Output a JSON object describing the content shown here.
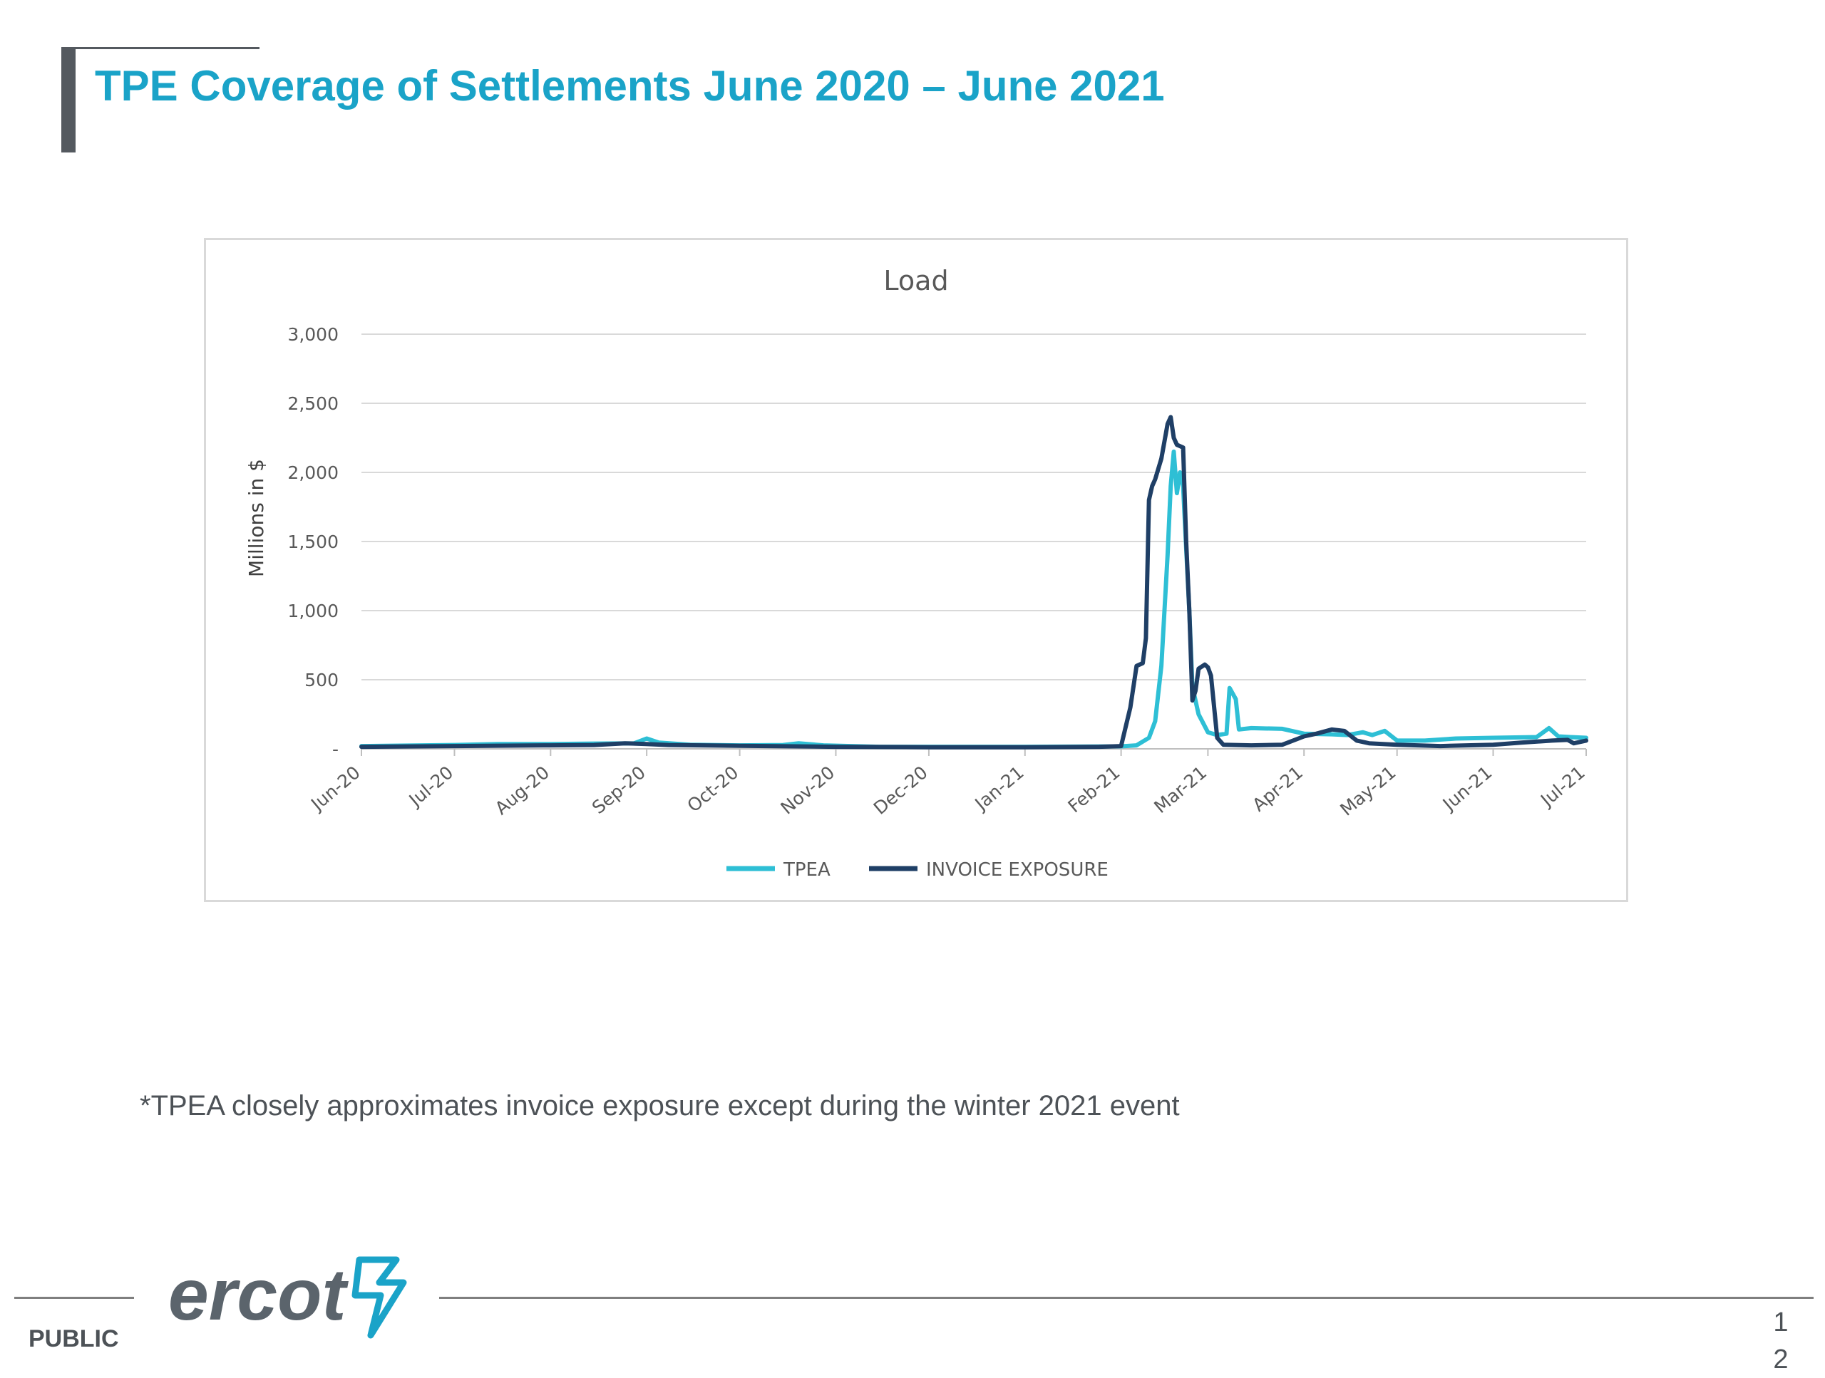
{
  "slide": {
    "title": "TPE Coverage of Settlements June 2020 – June 2021",
    "footnote": "*TPEA closely approximates invoice exposure except during the winter 2021 event",
    "classification": "PUBLIC",
    "page_number_line1": "1",
    "page_number_line2": "2",
    "logo_text": "ercot",
    "colors": {
      "title": "#1aa3c8",
      "tpea": "#2ebfd5",
      "invoice": "#1f3f66"
    }
  },
  "chart_data": {
    "type": "line",
    "title": "Load",
    "ylabel": "Millions in $",
    "xlabel": "",
    "ylim": [
      0,
      3000
    ],
    "yticks": [
      0,
      500,
      1000,
      1500,
      2000,
      2500,
      3000
    ],
    "ytick_labels": [
      "-",
      "500",
      "1,000",
      "1,500",
      "2,000",
      "2,500",
      "3,000"
    ],
    "xlim": [
      "2020-06-01",
      "2021-07-01"
    ],
    "x_ticks": [
      "2020-06-01",
      "2020-07-01",
      "2020-08-01",
      "2020-09-01",
      "2020-10-01",
      "2020-11-01",
      "2020-12-01",
      "2021-01-01",
      "2021-02-01",
      "2021-03-01",
      "2021-04-01",
      "2021-05-01",
      "2021-06-01",
      "2021-07-01"
    ],
    "xtick_labels": [
      "Jun-20",
      "Jul-20",
      "Aug-20",
      "Sep-20",
      "Oct-20",
      "Nov-20",
      "Dec-20",
      "Jan-21",
      "Feb-21",
      "Mar-21",
      "Apr-21",
      "May-21",
      "Jun-21",
      "Jul-21"
    ],
    "grid": true,
    "legend_position": "bottom",
    "series": [
      {
        "name": "TPEA",
        "color": "#2ebfd5",
        "points": [
          [
            "2020-06-01",
            20
          ],
          [
            "2020-07-01",
            28
          ],
          [
            "2020-07-15",
            35
          ],
          [
            "2020-08-01",
            35
          ],
          [
            "2020-08-15",
            38
          ],
          [
            "2020-08-28",
            40
          ],
          [
            "2020-09-01",
            75
          ],
          [
            "2020-09-05",
            45
          ],
          [
            "2020-09-15",
            30
          ],
          [
            "2020-10-01",
            25
          ],
          [
            "2020-10-15",
            28
          ],
          [
            "2020-10-20",
            40
          ],
          [
            "2020-10-28",
            25
          ],
          [
            "2020-11-15",
            15
          ],
          [
            "2020-12-01",
            15
          ],
          [
            "2021-01-01",
            15
          ],
          [
            "2021-02-01",
            18
          ],
          [
            "2021-02-06",
            25
          ],
          [
            "2021-02-10",
            80
          ],
          [
            "2021-02-12",
            200
          ],
          [
            "2021-02-14",
            600
          ],
          [
            "2021-02-16",
            1400
          ],
          [
            "2021-02-17",
            1900
          ],
          [
            "2021-02-18",
            2150
          ],
          [
            "2021-02-19",
            1850
          ],
          [
            "2021-02-20",
            2000
          ],
          [
            "2021-02-21",
            1900
          ],
          [
            "2021-02-22",
            1450
          ],
          [
            "2021-02-23",
            1000
          ],
          [
            "2021-02-24",
            450
          ],
          [
            "2021-02-26",
            250
          ],
          [
            "2021-03-01",
            120
          ],
          [
            "2021-03-04",
            100
          ],
          [
            "2021-03-07",
            110
          ],
          [
            "2021-03-08",
            440
          ],
          [
            "2021-03-10",
            360
          ],
          [
            "2021-03-11",
            140
          ],
          [
            "2021-03-15",
            150
          ],
          [
            "2021-03-25",
            145
          ],
          [
            "2021-04-01",
            110
          ],
          [
            "2021-04-10",
            105
          ],
          [
            "2021-04-15",
            100
          ],
          [
            "2021-04-20",
            120
          ],
          [
            "2021-04-23",
            100
          ],
          [
            "2021-04-27",
            130
          ],
          [
            "2021-05-01",
            60
          ],
          [
            "2021-05-10",
            60
          ],
          [
            "2021-05-20",
            75
          ],
          [
            "2021-06-01",
            80
          ],
          [
            "2021-06-15",
            85
          ],
          [
            "2021-06-19",
            150
          ],
          [
            "2021-06-22",
            90
          ],
          [
            "2021-06-26",
            85
          ],
          [
            "2021-07-01",
            80
          ]
        ]
      },
      {
        "name": "INVOICE EXPOSURE",
        "color": "#1f3f66",
        "points": [
          [
            "2020-06-01",
            15
          ],
          [
            "2020-07-01",
            20
          ],
          [
            "2020-08-01",
            25
          ],
          [
            "2020-08-15",
            28
          ],
          [
            "2020-08-25",
            40
          ],
          [
            "2020-09-01",
            35
          ],
          [
            "2020-09-08",
            28
          ],
          [
            "2020-10-01",
            22
          ],
          [
            "2020-11-01",
            15
          ],
          [
            "2020-12-01",
            12
          ],
          [
            "2021-01-01",
            12
          ],
          [
            "2021-01-25",
            15
          ],
          [
            "2021-02-01",
            20
          ],
          [
            "2021-02-04",
            300
          ],
          [
            "2021-02-06",
            600
          ],
          [
            "2021-02-08",
            620
          ],
          [
            "2021-02-09",
            800
          ],
          [
            "2021-02-10",
            1800
          ],
          [
            "2021-02-11",
            1900
          ],
          [
            "2021-02-12",
            1950
          ],
          [
            "2021-02-14",
            2100
          ],
          [
            "2021-02-16",
            2350
          ],
          [
            "2021-02-17",
            2400
          ],
          [
            "2021-02-18",
            2250
          ],
          [
            "2021-02-19",
            2200
          ],
          [
            "2021-02-21",
            2180
          ],
          [
            "2021-02-22",
            1500
          ],
          [
            "2021-02-23",
            1000
          ],
          [
            "2021-02-24",
            350
          ],
          [
            "2021-02-25",
            420
          ],
          [
            "2021-02-26",
            580
          ],
          [
            "2021-02-28",
            610
          ],
          [
            "2021-03-01",
            590
          ],
          [
            "2021-03-02",
            530
          ],
          [
            "2021-03-04",
            80
          ],
          [
            "2021-03-06",
            30
          ],
          [
            "2021-03-15",
            25
          ],
          [
            "2021-03-25",
            30
          ],
          [
            "2021-04-01",
            90
          ],
          [
            "2021-04-05",
            110
          ],
          [
            "2021-04-10",
            140
          ],
          [
            "2021-04-14",
            130
          ],
          [
            "2021-04-18",
            60
          ],
          [
            "2021-04-22",
            40
          ],
          [
            "2021-05-01",
            30
          ],
          [
            "2021-05-15",
            20
          ],
          [
            "2021-06-01",
            30
          ],
          [
            "2021-06-10",
            45
          ],
          [
            "2021-06-20",
            60
          ],
          [
            "2021-06-25",
            65
          ],
          [
            "2021-06-27",
            40
          ],
          [
            "2021-07-01",
            60
          ]
        ]
      }
    ]
  }
}
